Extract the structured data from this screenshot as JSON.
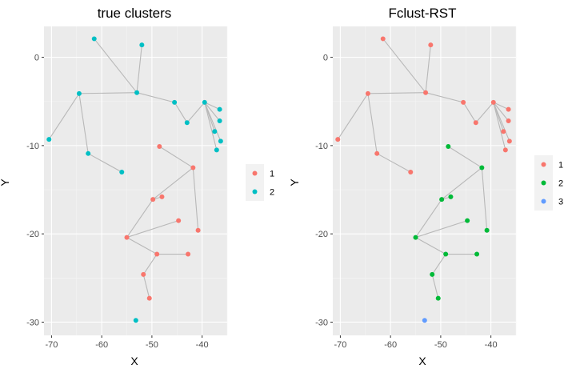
{
  "chart_data": [
    {
      "type": "scatter",
      "title": "true clusters",
      "xlabel": "X",
      "ylabel": "Y",
      "xlim": [
        -71.5,
        -35
      ],
      "ylim": [
        -31.5,
        3.5
      ],
      "x_ticks": [
        -70,
        -60,
        -50,
        -40
      ],
      "x_tick_labels": [
        "-70",
        "-60",
        "-50",
        "-40"
      ],
      "y_ticks": [
        0,
        -10,
        -20,
        -30
      ],
      "y_tick_labels": [
        "0",
        "-10",
        "-20",
        "-30"
      ],
      "grid": true,
      "legend_position": "right",
      "legend_labels": [
        "1",
        "2"
      ],
      "legend_colors": [
        "#F8766D",
        "#00BFC4"
      ],
      "points": [
        {
          "x": -61.5,
          "y": 2.1,
          "cluster": 2
        },
        {
          "x": -52.0,
          "y": 1.4,
          "cluster": 2
        },
        {
          "x": -53.0,
          "y": -4.0,
          "cluster": 2
        },
        {
          "x": -64.5,
          "y": -4.1,
          "cluster": 2
        },
        {
          "x": -70.5,
          "y": -9.3,
          "cluster": 2
        },
        {
          "x": -62.7,
          "y": -10.9,
          "cluster": 2
        },
        {
          "x": -56.0,
          "y": -13.0,
          "cluster": 2
        },
        {
          "x": -45.5,
          "y": -5.1,
          "cluster": 2
        },
        {
          "x": -43.0,
          "y": -7.4,
          "cluster": 2
        },
        {
          "x": -39.5,
          "y": -5.1,
          "cluster": 2
        },
        {
          "x": -36.5,
          "y": -5.9,
          "cluster": 2
        },
        {
          "x": -36.5,
          "y": -7.2,
          "cluster": 2
        },
        {
          "x": -37.5,
          "y": -8.4,
          "cluster": 2
        },
        {
          "x": -36.3,
          "y": -9.5,
          "cluster": 2
        },
        {
          "x": -37.1,
          "y": -10.5,
          "cluster": 2
        },
        {
          "x": -48.5,
          "y": -10.1,
          "cluster": 1
        },
        {
          "x": -41.8,
          "y": -12.5,
          "cluster": 1
        },
        {
          "x": -48.0,
          "y": -15.8,
          "cluster": 1
        },
        {
          "x": -49.8,
          "y": -16.1,
          "cluster": 1
        },
        {
          "x": -44.7,
          "y": -18.5,
          "cluster": 1
        },
        {
          "x": -40.8,
          "y": -19.6,
          "cluster": 1
        },
        {
          "x": -55.0,
          "y": -20.4,
          "cluster": 1
        },
        {
          "x": -49.0,
          "y": -22.3,
          "cluster": 1
        },
        {
          "x": -42.8,
          "y": -22.3,
          "cluster": 1
        },
        {
          "x": -51.7,
          "y": -24.6,
          "cluster": 1
        },
        {
          "x": -50.5,
          "y": -27.3,
          "cluster": 1
        },
        {
          "x": -53.2,
          "y": -29.8,
          "cluster": 2
        }
      ],
      "edges": [
        [
          0,
          2
        ],
        [
          1,
          2
        ],
        [
          2,
          3
        ],
        [
          3,
          4
        ],
        [
          3,
          5
        ],
        [
          5,
          6
        ],
        [
          2,
          7
        ],
        [
          7,
          8
        ],
        [
          8,
          9
        ],
        [
          9,
          10
        ],
        [
          9,
          11
        ],
        [
          9,
          12
        ],
        [
          9,
          13
        ],
        [
          9,
          14
        ],
        [
          15,
          16
        ],
        [
          16,
          18
        ],
        [
          16,
          20
        ],
        [
          18,
          17
        ],
        [
          18,
          21
        ],
        [
          21,
          19
        ],
        [
          21,
          22
        ],
        [
          22,
          23
        ],
        [
          22,
          24
        ],
        [
          24,
          25
        ]
      ]
    },
    {
      "type": "scatter",
      "title": "Fclust-RST",
      "xlabel": "X",
      "ylabel": "Y",
      "xlim": [
        -71.5,
        -35
      ],
      "ylim": [
        -31.5,
        3.5
      ],
      "x_ticks": [
        -70,
        -60,
        -50,
        -40
      ],
      "x_tick_labels": [
        "-70",
        "-60",
        "-50",
        "-40"
      ],
      "y_ticks": [
        0,
        -10,
        -20,
        -30
      ],
      "y_tick_labels": [
        "0",
        "-10",
        "-20",
        "-30"
      ],
      "grid": true,
      "legend_position": "right",
      "legend_labels": [
        "1",
        "2",
        "3"
      ],
      "legend_colors": [
        "#F8766D",
        "#00BA38",
        "#619CFF"
      ],
      "points": [
        {
          "x": -61.5,
          "y": 2.1,
          "cluster": 1
        },
        {
          "x": -52.0,
          "y": 1.4,
          "cluster": 1
        },
        {
          "x": -53.0,
          "y": -4.0,
          "cluster": 1
        },
        {
          "x": -64.5,
          "y": -4.1,
          "cluster": 1
        },
        {
          "x": -70.5,
          "y": -9.3,
          "cluster": 1
        },
        {
          "x": -62.7,
          "y": -10.9,
          "cluster": 1
        },
        {
          "x": -56.0,
          "y": -13.0,
          "cluster": 1
        },
        {
          "x": -45.5,
          "y": -5.1,
          "cluster": 1
        },
        {
          "x": -43.0,
          "y": -7.4,
          "cluster": 1
        },
        {
          "x": -39.5,
          "y": -5.1,
          "cluster": 1
        },
        {
          "x": -36.5,
          "y": -5.9,
          "cluster": 1
        },
        {
          "x": -36.5,
          "y": -7.2,
          "cluster": 1
        },
        {
          "x": -37.5,
          "y": -8.4,
          "cluster": 1
        },
        {
          "x": -36.3,
          "y": -9.5,
          "cluster": 1
        },
        {
          "x": -37.1,
          "y": -10.5,
          "cluster": 1
        },
        {
          "x": -48.5,
          "y": -10.1,
          "cluster": 2
        },
        {
          "x": -41.8,
          "y": -12.5,
          "cluster": 2
        },
        {
          "x": -48.0,
          "y": -15.8,
          "cluster": 2
        },
        {
          "x": -49.8,
          "y": -16.1,
          "cluster": 2
        },
        {
          "x": -44.7,
          "y": -18.5,
          "cluster": 2
        },
        {
          "x": -40.8,
          "y": -19.6,
          "cluster": 2
        },
        {
          "x": -55.0,
          "y": -20.4,
          "cluster": 2
        },
        {
          "x": -49.0,
          "y": -22.3,
          "cluster": 2
        },
        {
          "x": -42.8,
          "y": -22.3,
          "cluster": 2
        },
        {
          "x": -51.7,
          "y": -24.6,
          "cluster": 2
        },
        {
          "x": -50.5,
          "y": -27.3,
          "cluster": 2
        },
        {
          "x": -53.2,
          "y": -29.8,
          "cluster": 3
        }
      ],
      "edges": [
        [
          0,
          2
        ],
        [
          1,
          2
        ],
        [
          2,
          3
        ],
        [
          3,
          4
        ],
        [
          3,
          5
        ],
        [
          5,
          6
        ],
        [
          2,
          7
        ],
        [
          7,
          8
        ],
        [
          8,
          9
        ],
        [
          9,
          10
        ],
        [
          9,
          11
        ],
        [
          9,
          12
        ],
        [
          9,
          13
        ],
        [
          9,
          14
        ],
        [
          15,
          16
        ],
        [
          16,
          18
        ],
        [
          16,
          20
        ],
        [
          18,
          17
        ],
        [
          18,
          21
        ],
        [
          21,
          19
        ],
        [
          21,
          22
        ],
        [
          22,
          23
        ],
        [
          22,
          24
        ],
        [
          24,
          25
        ]
      ]
    }
  ]
}
